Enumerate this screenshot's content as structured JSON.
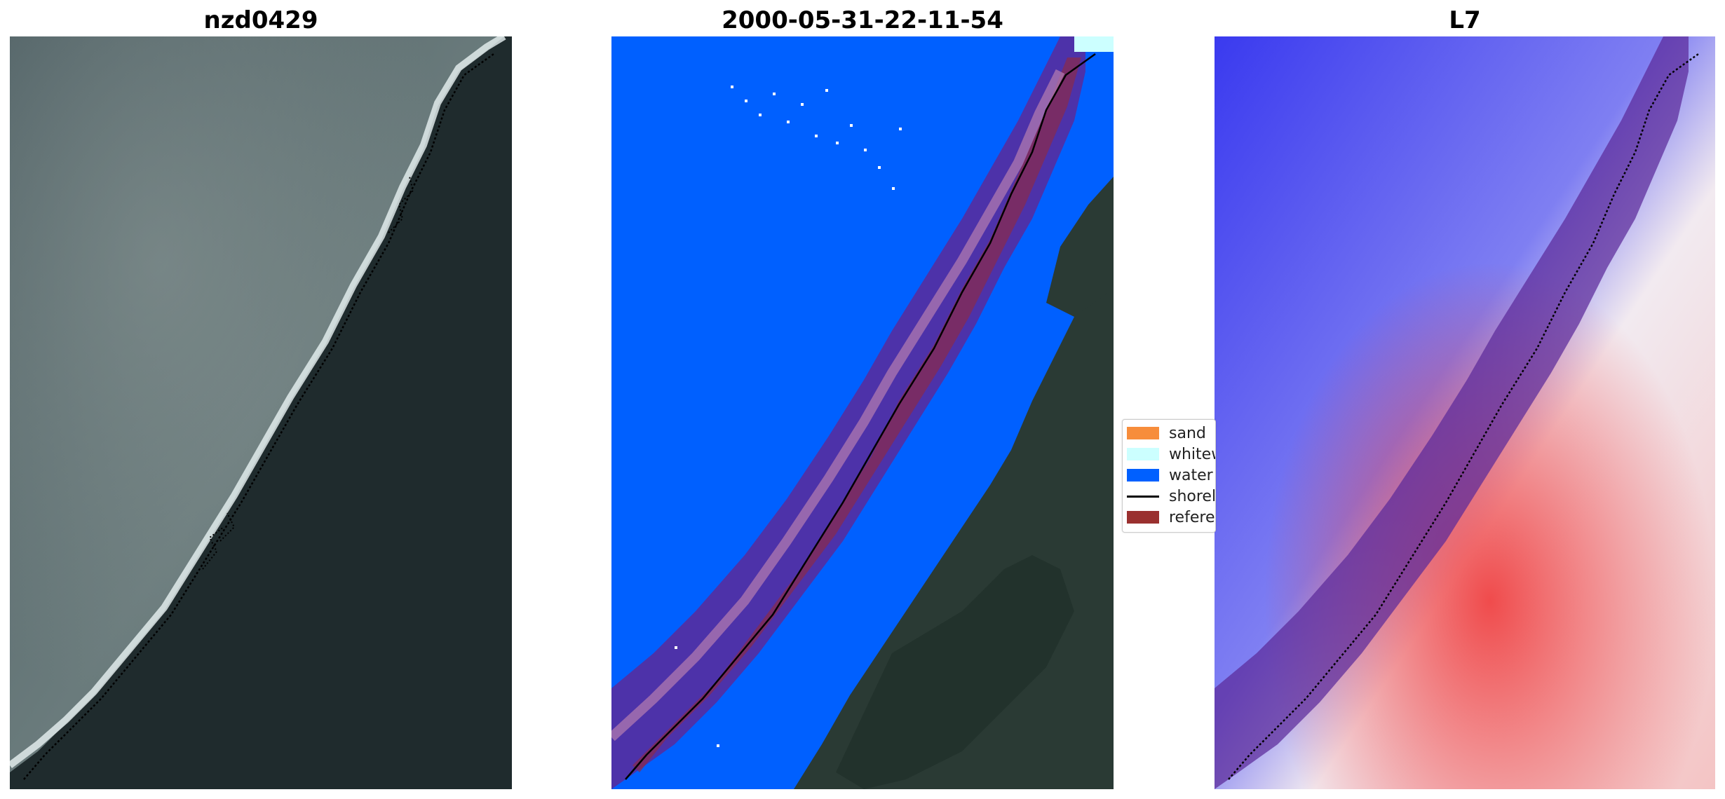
{
  "panels": [
    {
      "title": "nzd0429",
      "kind": "rgb-image"
    },
    {
      "title": "2000-05-31-22-11-54",
      "kind": "classified-image"
    },
    {
      "title": "L7",
      "kind": "mndwi-image"
    }
  ],
  "legend": {
    "items": [
      {
        "label": "sand",
        "type": "patch",
        "color": "#f78d3b"
      },
      {
        "label": "whitew",
        "type": "patch",
        "color": "#ccffff"
      },
      {
        "label": "water",
        "type": "patch",
        "color": "#0060ff"
      },
      {
        "label": "shorel",
        "type": "line",
        "color": "#000000"
      },
      {
        "label": "referen",
        "type": "patch",
        "color": "#9a302f"
      }
    ]
  },
  "colors": {
    "sea_rgb": "#5d6e70",
    "land_rgb": "#1f2a2c",
    "water_class": "#0060ff",
    "buffer_overlay": "#5b2a9a",
    "reference_overlay": "#8a2a4a",
    "mndwi_blue": "#3a3aef",
    "mndwi_red": "#f04040"
  }
}
